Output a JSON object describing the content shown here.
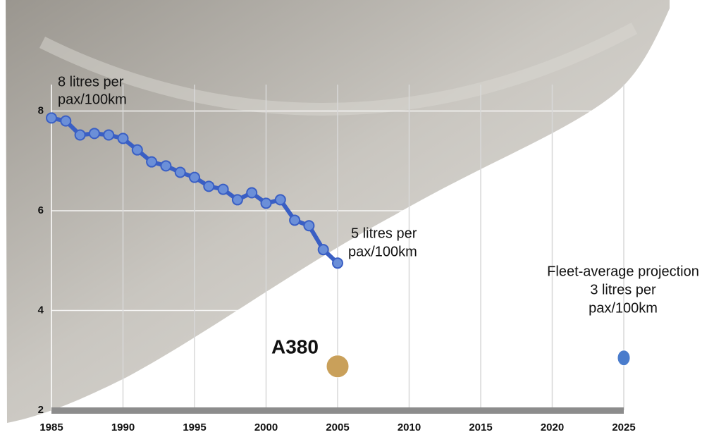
{
  "chart_data": {
    "type": "line",
    "annotations": [
      [
        "8 litres per",
        "pax/100km"
      ],
      [
        "5 litres per",
        "pax/100km"
      ],
      [
        "Fleet-average projection",
        "3 litres per",
        "pax/100km"
      ]
    ],
    "x": [
      1985,
      1986,
      1987,
      1988,
      1989,
      1990,
      1991,
      1992,
      1993,
      1994,
      1995,
      1996,
      1997,
      1998,
      1999,
      2000,
      2001,
      2002,
      2003,
      2004,
      2005
    ],
    "values": [
      7.86,
      7.8,
      7.52,
      7.55,
      7.52,
      7.45,
      7.22,
      6.98,
      6.9,
      6.77,
      6.67,
      6.49,
      6.43,
      6.22,
      6.36,
      6.15,
      6.22,
      5.81,
      5.7,
      5.22,
      4.95
    ],
    "color": "#3a5fc4",
    "points": [
      {
        "label": "A380",
        "x": 2005,
        "value": 2.88,
        "color": "#c9a05a"
      },
      {
        "x": 2025,
        "value": 3.05,
        "color": "#4a7ccc"
      }
    ],
    "xlim": [
      1985,
      2025
    ],
    "xticks": [
      1985,
      1990,
      1995,
      2000,
      2005,
      2010,
      2015,
      2020,
      2025
    ],
    "ylim": [
      2,
      10
    ],
    "yticks": [
      2,
      4,
      6,
      8
    ],
    "grid": true
  }
}
